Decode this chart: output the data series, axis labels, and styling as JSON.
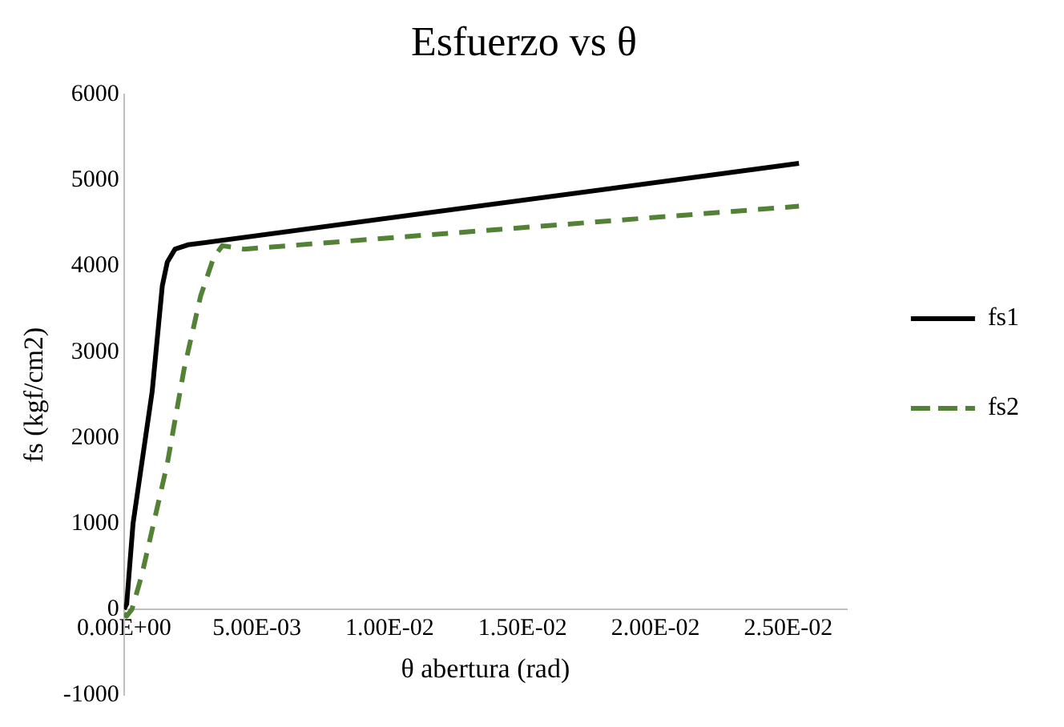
{
  "chart_data": {
    "type": "line",
    "title": "Esfuerzo vs θ",
    "xlabel": "θ abertura (rad)",
    "ylabel": "fs (kgf/cm2)",
    "xlim": [
      0,
      0.0272
    ],
    "xticks": [
      {
        "value": 0,
        "label": "0.00E+00"
      },
      {
        "value": 0.005,
        "label": "5.00E-03"
      },
      {
        "value": 0.01,
        "label": "1.00E-02"
      },
      {
        "value": 0.015,
        "label": "1.50E-02"
      },
      {
        "value": 0.02,
        "label": "2.00E-02"
      },
      {
        "value": 0.025,
        "label": "2.50E-02"
      }
    ],
    "ylim": [
      -1000,
      6000
    ],
    "yticks": [
      -1000,
      0,
      1000,
      2000,
      3000,
      4000,
      5000,
      6000
    ],
    "grid": false,
    "legend": "right",
    "marker": "none",
    "series": [
      {
        "name": "fs1",
        "color": "#000000",
        "line_style": "solid",
        "x": [
          0,
          0.0001,
          0.00034,
          0.00106,
          0.00144,
          0.00163,
          0.00192,
          0.0024,
          0.0254
        ],
        "values": [
          0,
          60,
          1000,
          2540,
          3770,
          4050,
          4200,
          4250,
          5200
        ]
      },
      {
        "name": "fs2",
        "color": "#538135",
        "line_style": "dashed",
        "x": [
          0,
          0.0001,
          0.0003,
          0.00067,
          0.00163,
          0.00226,
          0.00288,
          0.00337,
          0.0037,
          0.00452,
          0.0254
        ],
        "values": [
          -50,
          -80,
          0,
          400,
          1700,
          2800,
          3650,
          4100,
          4240,
          4200,
          4700
        ]
      }
    ]
  }
}
